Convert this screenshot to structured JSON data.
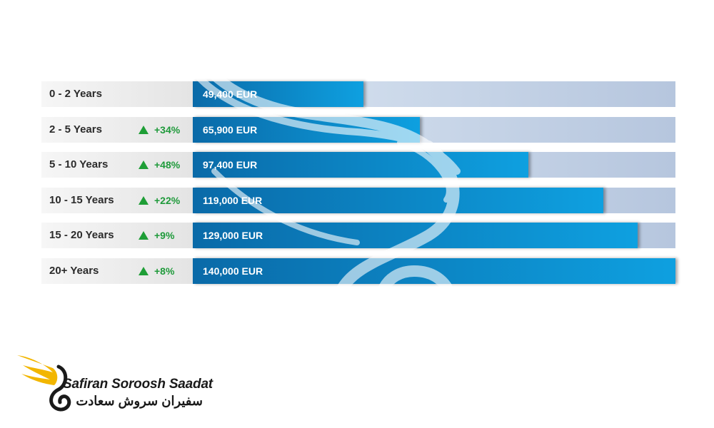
{
  "chart_data": {
    "type": "bar",
    "orientation": "horizontal",
    "categories": [
      "0 - 2 Years",
      "2 - 5 Years",
      "5 - 10 Years",
      "10 - 15 Years",
      "15 - 20 Years",
      "20+ Years"
    ],
    "values": [
      49400,
      65900,
      97400,
      119000,
      129000,
      140000
    ],
    "value_labels": [
      "49,400 EUR",
      "65,900 EUR",
      "97,400 EUR",
      "119,000 EUR",
      "129,000 EUR",
      "140,000 EUR"
    ],
    "growth": [
      "",
      "+34%",
      "+48%",
      "+22%",
      "+9%",
      "+8%"
    ],
    "unit": "EUR",
    "xlim": [
      0,
      140000
    ],
    "colors": {
      "bar_start": "#0a6aa8",
      "bar_end": "#0ea0e0",
      "track": "#c9d7ea",
      "label_bg": "#e8e8e8",
      "growth": "#1f9a3b"
    }
  },
  "brand": {
    "name_en": "Safiran Soroosh Saadat",
    "name_fa": "سفیران سروش سعادت",
    "logo_icon": "swan-wing-logo",
    "colors": {
      "wing": "#f2b600",
      "text": "#1a1a1a"
    }
  }
}
